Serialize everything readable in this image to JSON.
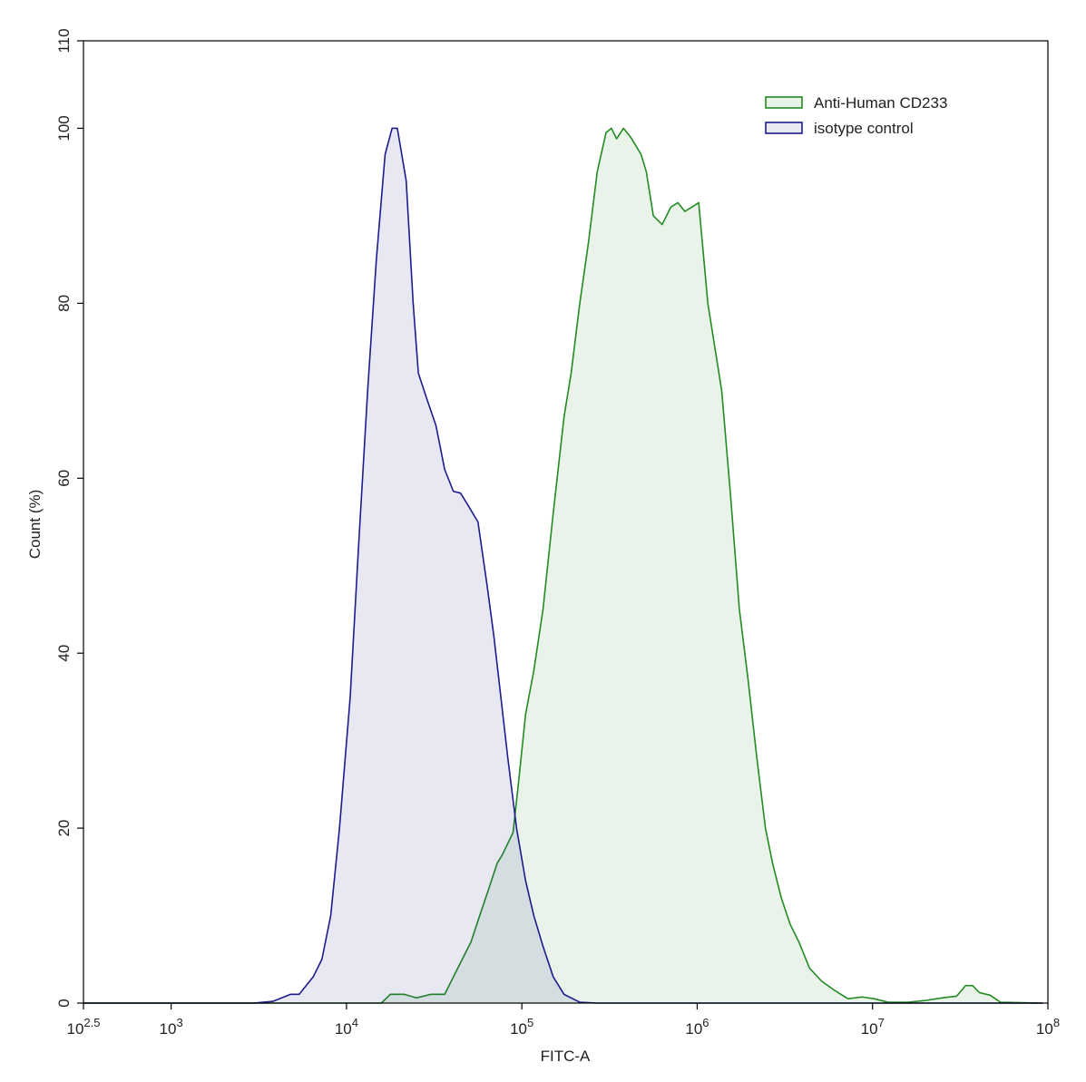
{
  "chart_data": {
    "type": "histogram-overlay",
    "xlabel": "FITC-A",
    "ylabel": "Count  (%)",
    "xscale": "log",
    "xlim": [
      316.228,
      100000000
    ],
    "xticks": [
      {
        "value": 316.228,
        "label": "10^2.5"
      },
      {
        "value": 1000,
        "label": "10^3"
      },
      {
        "value": 10000,
        "label": "10^4"
      },
      {
        "value": 100000,
        "label": "10^5"
      },
      {
        "value": 1000000,
        "label": "10^6"
      },
      {
        "value": 10000000,
        "label": "10^7"
      },
      {
        "value": 100000000,
        "label": "10^8"
      }
    ],
    "ylim": [
      0,
      110
    ],
    "yticks": [
      0,
      20,
      40,
      60,
      80,
      100,
      110
    ],
    "legend": "top-right",
    "series": [
      {
        "name": "Anti-Human CD233",
        "color": "#238b23",
        "x": [
          316,
          15800,
          17800,
          21400,
          25100,
          30200,
          36300,
          40700,
          45700,
          51300,
          57500,
          64600,
          72400,
          77600,
          89100,
          95500,
          105000,
          117000,
          132000,
          151000,
          174000,
          191000,
          214000,
          240000,
          269000,
          302000,
          324000,
          347000,
          380000,
          417000,
          479000,
          513000,
          562000,
          631000,
          708000,
          776000,
          851000,
          933000,
          1020000,
          1150000,
          1380000,
          1550000,
          1740000,
          1950000,
          2190000,
          2450000,
          2690000,
          3020000,
          3390000,
          3800000,
          4370000,
          5130000,
          6030000,
          7240000,
          8710000,
          10200000,
          12300000,
          15800000,
          20000000,
          25100000,
          30200000,
          33900000,
          37200000,
          40700000,
          46800000,
          53700000,
          93300000
        ],
        "values": [
          0,
          0,
          1,
          1,
          0.6,
          1,
          1,
          3,
          5,
          7,
          10,
          13,
          16,
          17,
          19.5,
          25,
          33,
          38,
          45,
          56,
          67,
          72,
          80,
          87,
          95,
          99.5,
          100,
          98.8,
          100,
          99,
          97,
          95,
          90,
          89,
          91,
          91.5,
          90.5,
          91,
          91.5,
          80,
          70,
          58,
          45,
          37,
          28,
          20,
          16,
          12,
          9,
          7,
          4,
          2.5,
          1.5,
          0.5,
          0.7,
          0.5,
          0.1,
          0.1,
          0.3,
          0.6,
          0.8,
          2,
          2,
          1.2,
          0.9,
          0.1,
          0
        ]
      },
      {
        "name": "isotype control",
        "color": "#1c1c8e",
        "x": [
          316,
          2950,
          3800,
          4790,
          5370,
          6460,
          7240,
          8130,
          9120,
          10500,
          11700,
          13200,
          14800,
          16600,
          18200,
          19500,
          21900,
          24000,
          25700,
          28800,
          32400,
          36300,
          40700,
          44700,
          49000,
          56200,
          63100,
          69200,
          75900,
          83200,
          93300,
          105000,
          117000,
          132000,
          151000,
          174000,
          214000,
          269000,
          93300000
        ],
        "values": [
          0,
          0,
          0.2,
          1,
          1,
          3,
          5,
          10,
          20,
          35,
          52,
          70,
          85,
          97,
          100,
          100,
          94,
          80,
          72,
          69,
          66,
          61,
          58.5,
          58.3,
          57,
          55,
          48,
          42,
          35,
          28,
          20,
          14,
          10,
          6.5,
          3,
          1,
          0.1,
          0,
          0
        ]
      }
    ]
  }
}
